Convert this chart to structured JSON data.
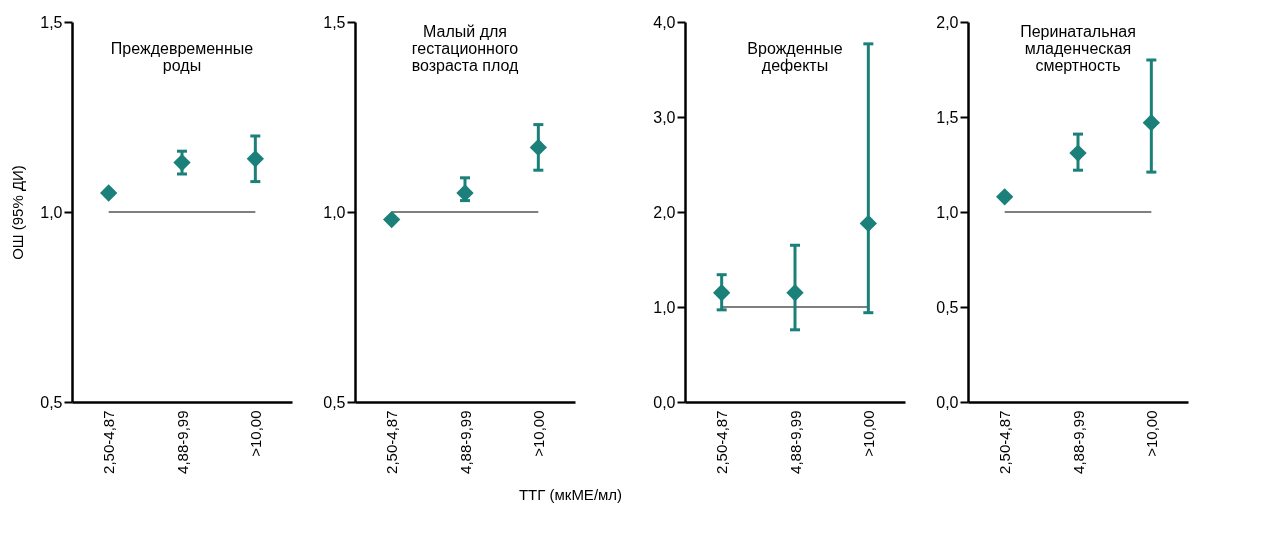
{
  "chart_data": [
    {
      "type": "scatter",
      "title": "Преждевременные роды",
      "ylabel": "ОШ (95% ДИ)",
      "categories": [
        "2,50-4,87",
        "4,88-9,99",
        ">10,00"
      ],
      "marker": "diamond",
      "ylim": [
        0.5,
        1.5
      ],
      "yticks": [
        {
          "value": 0.5,
          "label": "0,5"
        },
        {
          "value": 1.0,
          "label": "1,0"
        },
        {
          "value": 1.5,
          "label": "1,5"
        }
      ],
      "series": [
        {
          "color": "#1a8079",
          "values": [
            1.05,
            1.13,
            1.14
          ],
          "errors": [
            null,
            [
              1.1,
              1.16
            ],
            [
              1.08,
              1.2
            ]
          ]
        }
      ],
      "ref_lines": [
        {
          "axis": "y",
          "value": 1.0,
          "color": "#000000"
        }
      ]
    },
    {
      "type": "scatter",
      "title": "Малый для гестационного возраста плод",
      "xlabel": "ТТГ (мкМЕ/мл)",
      "categories": [
        "2,50-4,87",
        "4,88-9,99",
        ">10,00"
      ],
      "marker": "diamond",
      "ylim": [
        0.5,
        1.5
      ],
      "yticks": [
        {
          "value": 0.5,
          "label": "0,5"
        },
        {
          "value": 1.0,
          "label": "1,0"
        },
        {
          "value": 1.5,
          "label": "1,5"
        }
      ],
      "series": [
        {
          "color": "#1a8079",
          "values": [
            0.98,
            1.05,
            1.17
          ],
          "errors": [
            null,
            [
              1.03,
              1.09
            ],
            [
              1.11,
              1.23
            ]
          ]
        }
      ],
      "ref_lines": [
        {
          "axis": "y",
          "value": 1.0,
          "color": "#000000"
        }
      ]
    },
    {
      "type": "scatter",
      "title": "Врожденные дефекты",
      "categories": [
        "2,50-4,87",
        "4,88-9,99",
        ">10,00"
      ],
      "marker": "diamond",
      "ylim": [
        0,
        4
      ],
      "yticks": [
        {
          "value": 0,
          "label": "0,0"
        },
        {
          "value": 1,
          "label": "1,0"
        },
        {
          "value": 2,
          "label": "2,0"
        },
        {
          "value": 3,
          "label": "3,0"
        },
        {
          "value": 4,
          "label": "4,0"
        }
      ],
      "series": [
        {
          "color": "#1a8079",
          "values": [
            1.15,
            1.15,
            1.88
          ],
          "errors": [
            [
              0.97,
              1.34
            ],
            [
              0.76,
              1.65
            ],
            [
              0.94,
              3.77
            ]
          ]
        }
      ],
      "ref_lines": [
        {
          "axis": "y",
          "value": 1.0,
          "color": "#000000"
        }
      ]
    },
    {
      "type": "scatter",
      "title": "Перинатальная младенческая смертность",
      "categories": [
        "2,50-4,87",
        "4,88-9,99",
        ">10,00"
      ],
      "marker": "diamond",
      "ylim": [
        0,
        2
      ],
      "yticks": [
        {
          "value": 0,
          "label": "0,0"
        },
        {
          "value": 0.5,
          "label": "0,5"
        },
        {
          "value": 1,
          "label": "1,0"
        },
        {
          "value": 1.5,
          "label": "1,5"
        },
        {
          "value": 2,
          "label": "2,0"
        }
      ],
      "series": [
        {
          "color": "#1a8079",
          "values": [
            1.08,
            1.31,
            1.47
          ],
          "errors": [
            null,
            [
              1.22,
              1.41
            ],
            [
              1.21,
              1.8
            ]
          ]
        }
      ],
      "ref_lines": [
        {
          "axis": "y",
          "value": 1.0,
          "color": "#000000"
        }
      ]
    }
  ]
}
